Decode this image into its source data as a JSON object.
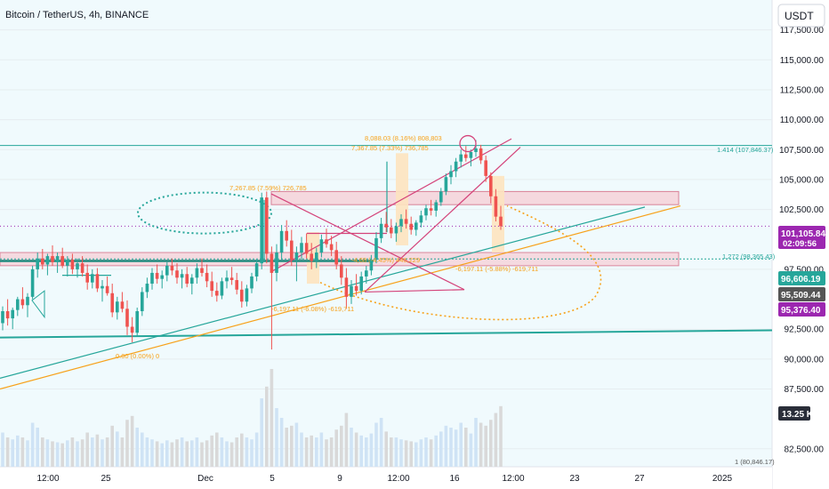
{
  "header": {
    "title": "Bitcoin / TetherUS, 4h, BINANCE"
  },
  "currency": "USDT",
  "colors": {
    "up": "#26a69a",
    "down": "#ef5350",
    "teal": "#26a69a",
    "orange": "#f7a21b",
    "pink": "#d4437a",
    "purple": "#9c27b0",
    "zone_fill": "#f7d3d9",
    "zone_stroke": "#d66b85",
    "ghost": "#fde3bf",
    "bg": "#f0fafd",
    "vol_up": "#cfe3f5",
    "vol_down": "#d9d9d9"
  },
  "chart_data": {
    "type": "candlestick",
    "ylim": [
      81000,
      120000
    ],
    "y_ticks": [
      {
        "value": 117500,
        "label": "117,500.00"
      },
      {
        "value": 115000,
        "label": "115,000.00"
      },
      {
        "value": 112500,
        "label": "112,500.00"
      },
      {
        "value": 110000,
        "label": "110,000.00"
      },
      {
        "value": 107500,
        "label": "107,500.00"
      },
      {
        "value": 105000,
        "label": "105,000.00"
      },
      {
        "value": 102500,
        "label": "102,500.00"
      },
      {
        "value": 97500,
        "label": "97,500.00"
      },
      {
        "value": 92500,
        "label": "92,500.00"
      },
      {
        "value": 90000,
        "label": "90,000.00"
      },
      {
        "value": 87500,
        "label": "87,500.00"
      },
      {
        "value": 82500,
        "label": "82,500.00"
      }
    ],
    "x_ticks": [
      "12:00",
      "25",
      "Dec",
      "5",
      "9",
      "12:00",
      "16",
      "12:00",
      "23",
      "27",
      "2025"
    ],
    "price_tags": [
      {
        "name": "last",
        "label": "101,105.84",
        "sub": "02:09:56",
        "value": 101105.84,
        "color": "#9c27b0"
      },
      {
        "name": "line-a",
        "label": "96,606.19",
        "value": 96606.19,
        "color": "#26a69a"
      },
      {
        "name": "line-b",
        "label": "95,509.44",
        "value": 95509.44,
        "color": "#555555"
      },
      {
        "name": "line-c",
        "label": "95,376.40",
        "value": 95376.4,
        "color": "#9c27b0"
      }
    ],
    "volume_tag": "13.25 K",
    "candles": [
      [
        93000,
        94400,
        92400,
        94000
      ],
      [
        94000,
        95000,
        92800,
        93400
      ],
      [
        93400,
        94300,
        92500,
        94100
      ],
      [
        94100,
        95200,
        93600,
        95000
      ],
      [
        95000,
        96000,
        94200,
        94500
      ],
      [
        94500,
        95500,
        93500,
        95200
      ],
      [
        95200,
        97800,
        95000,
        97500
      ],
      [
        97500,
        98900,
        96800,
        98400
      ],
      [
        98400,
        99200,
        97500,
        97900
      ],
      [
        97900,
        98800,
        97000,
        98600
      ],
      [
        98600,
        99500,
        97800,
        98100
      ],
      [
        98100,
        98900,
        97200,
        98600
      ],
      [
        98600,
        99300,
        97600,
        97800
      ],
      [
        97800,
        98600,
        96900,
        98300
      ],
      [
        98300,
        98800,
        97100,
        97500
      ],
      [
        97500,
        98400,
        96800,
        98000
      ],
      [
        98000,
        98600,
        96900,
        97200
      ],
      [
        97200,
        97900,
        95800,
        96400
      ],
      [
        96400,
        97500,
        95900,
        97100
      ],
      [
        97100,
        97600,
        95600,
        95900
      ],
      [
        95900,
        96600,
        94800,
        96100
      ],
      [
        96100,
        96900,
        95300,
        95500
      ],
      [
        95500,
        96300,
        93500,
        93900
      ],
      [
        93900,
        95200,
        93300,
        94800
      ],
      [
        94800,
        95600,
        93900,
        94200
      ],
      [
        94200,
        94900,
        92000,
        92700
      ],
      [
        92700,
        93500,
        91400,
        92200
      ],
      [
        92200,
        94300,
        91900,
        94000
      ],
      [
        94000,
        96000,
        93600,
        95600
      ],
      [
        95600,
        96800,
        95100,
        96300
      ],
      [
        96300,
        97600,
        95800,
        97200
      ],
      [
        97200,
        97900,
        96300,
        96700
      ],
      [
        96700,
        97400,
        95900,
        97000
      ],
      [
        97000,
        98100,
        96500,
        97800
      ],
      [
        97800,
        98400,
        97000,
        97400
      ],
      [
        97400,
        98000,
        96300,
        96800
      ],
      [
        96800,
        97500,
        95900,
        97100
      ],
      [
        97100,
        97700,
        96000,
        96300
      ],
      [
        96300,
        97100,
        95400,
        96800
      ],
      [
        96800,
        98000,
        96300,
        97600
      ],
      [
        97600,
        98400,
        96900,
        97200
      ],
      [
        97200,
        97900,
        96000,
        96500
      ],
      [
        96500,
        97300,
        95200,
        95700
      ],
      [
        95700,
        96400,
        94800,
        95300
      ],
      [
        95300,
        96800,
        95000,
        96500
      ],
      [
        96500,
        97400,
        95900,
        96800
      ],
      [
        96800,
        97700,
        96200,
        96600
      ],
      [
        96600,
        97200,
        95400,
        95800
      ],
      [
        95800,
        96500,
        94300,
        94800
      ],
      [
        94800,
        96200,
        94400,
        95900
      ],
      [
        95900,
        97200,
        95500,
        96900
      ],
      [
        96900,
        98300,
        96500,
        98000
      ],
      [
        98000,
        103900,
        97500,
        103500
      ],
      [
        103500,
        104000,
        98000,
        98800
      ],
      [
        98800,
        99400,
        90800,
        97200
      ],
      [
        97200,
        99600,
        96500,
        98900
      ],
      [
        98900,
        101200,
        98300,
        100700
      ],
      [
        100700,
        101600,
        99400,
        99900
      ],
      [
        99900,
        100800,
        97800,
        98300
      ],
      [
        98300,
        99400,
        96500,
        98900
      ],
      [
        98900,
        100200,
        98300,
        99700
      ],
      [
        99700,
        100500,
        98400,
        98800
      ],
      [
        98800,
        99700,
        97500,
        98200
      ],
      [
        98200,
        99300,
        97600,
        98900
      ],
      [
        98900,
        100400,
        98500,
        100000
      ],
      [
        100000,
        100900,
        99300,
        99600
      ],
      [
        99600,
        100300,
        98600,
        99100
      ],
      [
        99100,
        99800,
        97500,
        97900
      ],
      [
        97900,
        98600,
        96200,
        96800
      ],
      [
        96800,
        97600,
        94200,
        95200
      ],
      [
        95200,
        96600,
        94600,
        96100
      ],
      [
        96100,
        97100,
        95300,
        95700
      ],
      [
        95700,
        97300,
        95400,
        96900
      ],
      [
        96900,
        97800,
        96300,
        97400
      ],
      [
        97400,
        98700,
        97000,
        98300
      ],
      [
        98300,
        100600,
        98000,
        100100
      ],
      [
        100100,
        101800,
        99700,
        101300
      ],
      [
        101300,
        102300,
        100600,
        101000
      ],
      [
        101000,
        101700,
        100100,
        100500
      ],
      [
        100500,
        101400,
        99800,
        101100
      ],
      [
        101100,
        102100,
        100600,
        101700
      ],
      [
        101700,
        102500,
        100900,
        101300
      ],
      [
        101300,
        101900,
        100400,
        100800
      ],
      [
        100800,
        101600,
        100300,
        101400
      ],
      [
        101400,
        102400,
        101000,
        102000
      ],
      [
        102000,
        102900,
        101600,
        102600
      ],
      [
        102600,
        103300,
        102000,
        102400
      ],
      [
        102400,
        103300,
        101900,
        103100
      ],
      [
        103100,
        104300,
        102800,
        104000
      ],
      [
        104000,
        105500,
        103700,
        105200
      ],
      [
        105200,
        106200,
        104600,
        105700
      ],
      [
        105700,
        106800,
        105200,
        106500
      ],
      [
        106500,
        107500,
        106000,
        107100
      ],
      [
        107100,
        107800,
        106500,
        106800
      ],
      [
        106800,
        107500,
        106100,
        107300
      ],
      [
        107300,
        108300,
        106900,
        107600
      ],
      [
        107600,
        107900,
        106300,
        106600
      ],
      [
        106600,
        107000,
        104800,
        105300
      ],
      [
        105300,
        105600,
        103000,
        103600
      ],
      [
        103600,
        104200,
        101500,
        101900
      ],
      [
        101900,
        102800,
        100800,
        101105.84
      ]
    ],
    "volumes": [
      0.35,
      0.3,
      0.28,
      0.32,
      0.3,
      0.27,
      0.45,
      0.4,
      0.3,
      0.28,
      0.26,
      0.25,
      0.24,
      0.27,
      0.3,
      0.26,
      0.28,
      0.35,
      0.3,
      0.33,
      0.28,
      0.3,
      0.42,
      0.36,
      0.3,
      0.48,
      0.52,
      0.4,
      0.35,
      0.3,
      0.28,
      0.26,
      0.24,
      0.27,
      0.25,
      0.28,
      0.3,
      0.26,
      0.27,
      0.3,
      0.25,
      0.27,
      0.32,
      0.35,
      0.3,
      0.26,
      0.25,
      0.3,
      0.34,
      0.3,
      0.28,
      0.35,
      0.7,
      0.82,
      1.0,
      0.6,
      0.5,
      0.4,
      0.42,
      0.45,
      0.35,
      0.3,
      0.32,
      0.3,
      0.35,
      0.28,
      0.3,
      0.38,
      0.42,
      0.55,
      0.4,
      0.35,
      0.32,
      0.3,
      0.34,
      0.45,
      0.5,
      0.36,
      0.3,
      0.3,
      0.28,
      0.27,
      0.26,
      0.25,
      0.28,
      0.3,
      0.28,
      0.32,
      0.36,
      0.42,
      0.4,
      0.38,
      0.45,
      0.4,
      0.34,
      0.5,
      0.45,
      0.42,
      0.48,
      0.55,
      0.62
    ],
    "annotations": [
      {
        "name": "fib-top",
        "text": "8,088.03 (8.16%) 808,803",
        "color": "#f7a21b"
      },
      {
        "name": "fib-second",
        "text": "7,367.85 (7.33%) 736,785",
        "color": "#f7a21b"
      },
      {
        "name": "fib-left",
        "text": "7,267.85 (7.59%) 726,785",
        "color": "#f7a21b"
      },
      {
        "name": "fib-right-down",
        "text": "-6,197.11 (-5.88%) -619,711",
        "color": "#f7a21b"
      },
      {
        "name": "fib-mid",
        "text": "-6,197.11 (-6.08%) -619,711",
        "color": "#f7a21b"
      },
      {
        "name": "fib-mid-small",
        "text": "-4,68 (-4.45%) 446,229",
        "color": "#f7a21b"
      },
      {
        "name": "fib-zero",
        "text": "0.00 (0.00%) 0",
        "color": "#f7a21b"
      },
      {
        "name": "fib-1414",
        "text": "1.414 (107,846.37)",
        "color": "#26a69a"
      },
      {
        "name": "fib-1272",
        "text": "1.272 (98,365.43)",
        "color": "#26a69a"
      },
      {
        "name": "fib-bottom",
        "text": "1 (80,846.17)",
        "color": "#555555"
      }
    ]
  }
}
